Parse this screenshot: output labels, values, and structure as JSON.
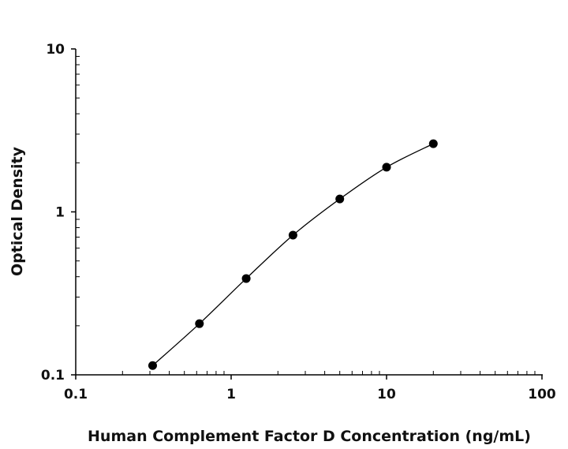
{
  "chart_data": {
    "type": "scatter",
    "title": "",
    "xlabel": "Human Complement Factor D Concentration (ng/mL)",
    "ylabel": "Optical Density",
    "xscale": "log",
    "yscale": "log",
    "xlim": [
      0.1,
      100
    ],
    "ylim": [
      0.1,
      10
    ],
    "xticks": [
      "0.1",
      "1",
      "10",
      "100"
    ],
    "yticks": [
      "0.1",
      "1",
      "10"
    ],
    "grid": false,
    "legend": "none",
    "fit_curve": true,
    "marker_color": "#000000",
    "series": [
      {
        "x": [
          0.3125,
          0.625,
          1.25,
          2.5,
          5,
          10,
          20
        ],
        "y": [
          0.114,
          0.206,
          0.39,
          0.72,
          1.2,
          1.88,
          2.62
        ]
      }
    ]
  }
}
